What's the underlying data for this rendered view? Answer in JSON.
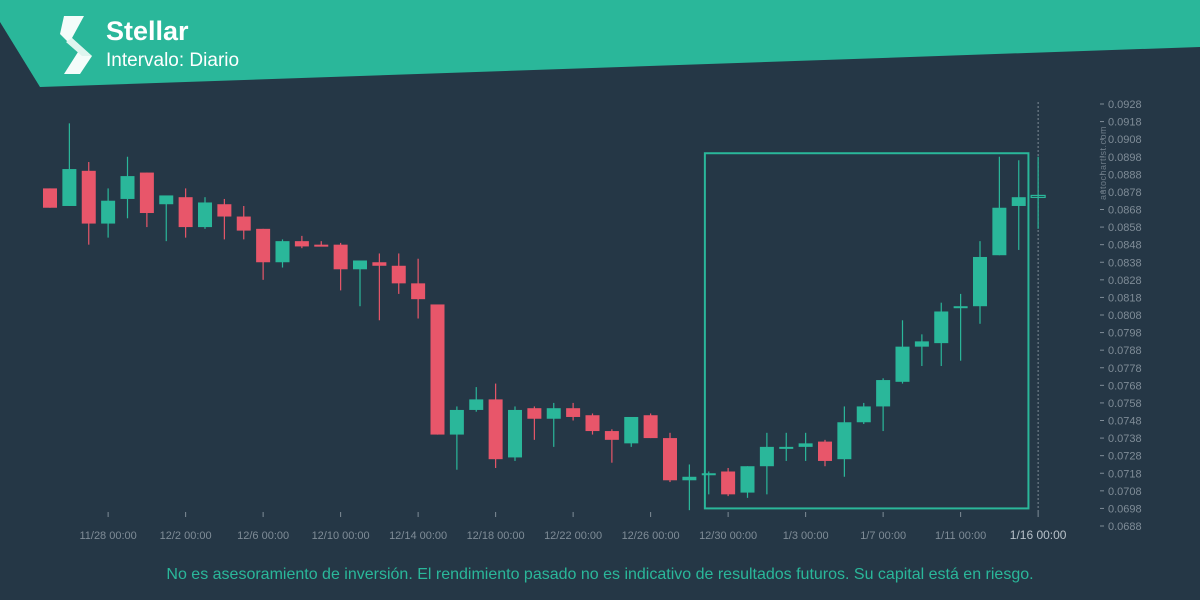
{
  "header": {
    "title": "Stellar",
    "interval": "Intervalo: Diario"
  },
  "footer": {
    "disclaimer": "No es asesoramiento de inversión. El rendimiento pasado no es indicativo de resultados futuros. Su capital está en riesgo."
  },
  "colors": {
    "background": "#253746",
    "brand": "#2ab79a",
    "bullish": "#2ab79a",
    "bearish": "#e8566a",
    "axis_text": "#7f8c97"
  },
  "icons": {
    "logo": "autochartist-logo-icon"
  },
  "chart_data": {
    "type": "candlestick",
    "watermark": "autochartist.com",
    "ylim": [
      0.0688,
      0.0933
    ],
    "y_ticks": [
      "0.0928",
      "0.0918",
      "0.0908",
      "0.0898",
      "0.0888",
      "0.0878",
      "0.0868",
      "0.0858",
      "0.0848",
      "0.0838",
      "0.0828",
      "0.0818",
      "0.0808",
      "0.0798",
      "0.0788",
      "0.0778",
      "0.0768",
      "0.0758",
      "0.0748",
      "0.0738",
      "0.0728",
      "0.0718",
      "0.0708",
      "0.0698",
      "0.0688"
    ],
    "x_tick_labels": [
      "11/28 00:00",
      "12/2 00:00",
      "12/6 00:00",
      "12/10 00:00",
      "12/14 00:00",
      "12/18 00:00",
      "12/22 00:00",
      "12/26 00:00",
      "12/30 00:00",
      "1/3 00:00",
      "1/7 00:00",
      "1/11 00:00",
      "1/16 00:00"
    ],
    "x_tick_index": [
      3,
      7,
      11,
      15,
      19,
      23,
      27,
      31,
      35,
      39,
      43,
      47,
      51
    ],
    "highlight_label": "1/16 00:00",
    "candles": [
      {
        "o": 0.088,
        "h": 0.088,
        "l": 0.0869,
        "c": 0.0869
      },
      {
        "o": 0.087,
        "h": 0.0917,
        "l": 0.087,
        "c": 0.0891
      },
      {
        "o": 0.089,
        "h": 0.0895,
        "l": 0.0848,
        "c": 0.086
      },
      {
        "o": 0.086,
        "h": 0.088,
        "l": 0.0852,
        "c": 0.0873
      },
      {
        "o": 0.0874,
        "h": 0.0898,
        "l": 0.0863,
        "c": 0.0887
      },
      {
        "o": 0.0889,
        "h": 0.0889,
        "l": 0.0858,
        "c": 0.0866
      },
      {
        "o": 0.0871,
        "h": 0.0875,
        "l": 0.085,
        "c": 0.0876
      },
      {
        "o": 0.0875,
        "h": 0.088,
        "l": 0.0852,
        "c": 0.0858
      },
      {
        "o": 0.0858,
        "h": 0.0875,
        "l": 0.0857,
        "c": 0.0872
      },
      {
        "o": 0.0871,
        "h": 0.0874,
        "l": 0.0851,
        "c": 0.0864
      },
      {
        "o": 0.0864,
        "h": 0.087,
        "l": 0.0851,
        "c": 0.0856
      },
      {
        "o": 0.0857,
        "h": 0.0857,
        "l": 0.0828,
        "c": 0.0838
      },
      {
        "o": 0.0838,
        "h": 0.0851,
        "l": 0.0835,
        "c": 0.085
      },
      {
        "o": 0.085,
        "h": 0.0853,
        "l": 0.0846,
        "c": 0.0847
      },
      {
        "o": 0.0848,
        "h": 0.085,
        "l": 0.0847,
        "c": 0.0847
      },
      {
        "o": 0.0848,
        "h": 0.0849,
        "l": 0.0822,
        "c": 0.0834
      },
      {
        "o": 0.0834,
        "h": 0.0839,
        "l": 0.0813,
        "c": 0.0839
      },
      {
        "o": 0.0838,
        "h": 0.0843,
        "l": 0.0805,
        "c": 0.0836
      },
      {
        "o": 0.0836,
        "h": 0.0843,
        "l": 0.082,
        "c": 0.0826
      },
      {
        "o": 0.0826,
        "h": 0.084,
        "l": 0.0806,
        "c": 0.0817
      },
      {
        "o": 0.0814,
        "h": 0.0814,
        "l": 0.074,
        "c": 0.074
      },
      {
        "o": 0.074,
        "h": 0.0756,
        "l": 0.072,
        "c": 0.0754
      },
      {
        "o": 0.0754,
        "h": 0.0767,
        "l": 0.0753,
        "c": 0.076
      },
      {
        "o": 0.076,
        "h": 0.0769,
        "l": 0.0721,
        "c": 0.0726
      },
      {
        "o": 0.0727,
        "h": 0.0756,
        "l": 0.0725,
        "c": 0.0754
      },
      {
        "o": 0.0755,
        "h": 0.0756,
        "l": 0.0737,
        "c": 0.0749
      },
      {
        "o": 0.0749,
        "h": 0.0758,
        "l": 0.0733,
        "c": 0.0755
      },
      {
        "o": 0.0755,
        "h": 0.0758,
        "l": 0.0748,
        "c": 0.075
      },
      {
        "o": 0.0751,
        "h": 0.0752,
        "l": 0.074,
        "c": 0.0742
      },
      {
        "o": 0.0742,
        "h": 0.0743,
        "l": 0.0724,
        "c": 0.0737
      },
      {
        "o": 0.0735,
        "h": 0.075,
        "l": 0.0733,
        "c": 0.075
      },
      {
        "o": 0.0751,
        "h": 0.0752,
        "l": 0.0738,
        "c": 0.0738
      },
      {
        "o": 0.0738,
        "h": 0.0741,
        "l": 0.0713,
        "c": 0.0714
      },
      {
        "o": 0.0714,
        "h": 0.0723,
        "l": 0.0697,
        "c": 0.0716
      },
      {
        "o": 0.0717,
        "h": 0.0719,
        "l": 0.0706,
        "c": 0.0718
      },
      {
        "o": 0.0719,
        "h": 0.0721,
        "l": 0.0705,
        "c": 0.0706
      },
      {
        "o": 0.0707,
        "h": 0.0722,
        "l": 0.0704,
        "c": 0.0722
      },
      {
        "o": 0.0722,
        "h": 0.0741,
        "l": 0.0706,
        "c": 0.0733
      },
      {
        "o": 0.0733,
        "h": 0.0741,
        "l": 0.0725,
        "c": 0.0733
      },
      {
        "o": 0.0733,
        "h": 0.0741,
        "l": 0.0725,
        "c": 0.0735
      },
      {
        "o": 0.0736,
        "h": 0.0737,
        "l": 0.0722,
        "c": 0.0725
      },
      {
        "o": 0.0726,
        "h": 0.0756,
        "l": 0.0716,
        "c": 0.0747
      },
      {
        "o": 0.0747,
        "h": 0.0758,
        "l": 0.0746,
        "c": 0.0756
      },
      {
        "o": 0.0756,
        "h": 0.0772,
        "l": 0.0742,
        "c": 0.0771
      },
      {
        "o": 0.077,
        "h": 0.0805,
        "l": 0.0769,
        "c": 0.079
      },
      {
        "o": 0.079,
        "h": 0.0797,
        "l": 0.0779,
        "c": 0.0793
      },
      {
        "o": 0.0792,
        "h": 0.0815,
        "l": 0.0779,
        "c": 0.081
      },
      {
        "o": 0.0813,
        "h": 0.082,
        "l": 0.0782,
        "c": 0.0813
      },
      {
        "o": 0.0813,
        "h": 0.085,
        "l": 0.0803,
        "c": 0.0841
      },
      {
        "o": 0.0842,
        "h": 0.0898,
        "l": 0.0842,
        "c": 0.0869
      },
      {
        "o": 0.087,
        "h": 0.0896,
        "l": 0.0845,
        "c": 0.0875
      },
      {
        "o": 0.0875,
        "h": 0.0898,
        "l": 0.0857,
        "c": 0.0876
      }
    ],
    "pattern_box": {
      "x_start": 33.8,
      "x_end": 50.5,
      "y_low": 0.0698,
      "y_high": 0.09
    },
    "dashed_marker_index": 51
  }
}
